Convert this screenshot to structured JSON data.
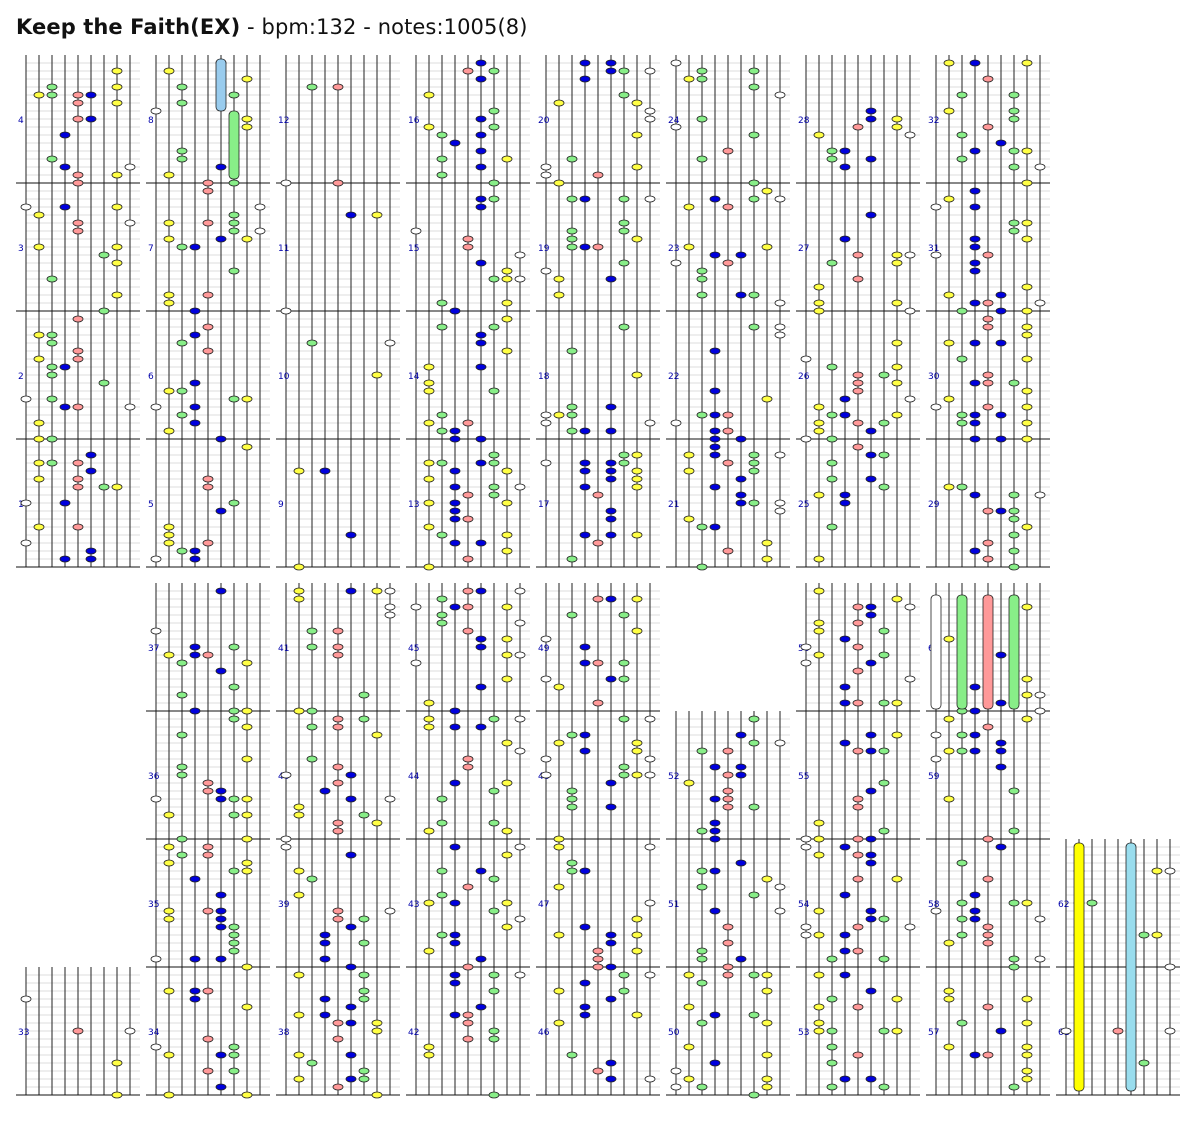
{
  "header": {
    "song_name": "Keep the Faith(EX)",
    "bpm_text": " - bpm:132 - notes:1005(8)"
  },
  "chart_data": {
    "type": "rhythm-game-chart",
    "song": "Keep the Faith",
    "difficulty": "EX",
    "bpm": 132,
    "notes": 1005,
    "notes_extra": 8,
    "lanes": 9,
    "lane_colors": [
      "#ffffff",
      "#ffff44",
      "#88ee88",
      "#0000dd",
      "#ff9999",
      "#0000dd",
      "#88ee88",
      "#ffff44",
      "#ffffff"
    ],
    "measure_labels": [
      "1",
      "2",
      "3",
      "4",
      "5",
      "6",
      "7",
      "8",
      "9",
      "10",
      "11",
      "12",
      "13",
      "14",
      "15",
      "16",
      "17",
      "18",
      "19",
      "20",
      "21",
      "22",
      "23",
      "24",
      "25",
      "26",
      "27",
      "28",
      "29",
      "30",
      "31",
      "32",
      "33",
      "34",
      "35",
      "36",
      "37",
      "38",
      "39",
      "40",
      "41",
      "42",
      "43",
      "44",
      "45",
      "46",
      "47",
      "48",
      "49",
      "50",
      "51",
      "52",
      "53",
      "54",
      "55",
      "56",
      "57",
      "58",
      "59",
      "60",
      "61",
      "62"
    ],
    "columns_row1": [
      {
        "measures": [
          1,
          2,
          3,
          4
        ]
      },
      {
        "measures": [
          5,
          6,
          7,
          8
        ]
      },
      {
        "measures": [
          9,
          10,
          11,
          12
        ]
      },
      {
        "measures": [
          13,
          14,
          15,
          16
        ]
      },
      {
        "measures": [
          17,
          18,
          19,
          20
        ]
      },
      {
        "measures": [
          21,
          22,
          23,
          24
        ]
      },
      {
        "measures": [
          25,
          26,
          27,
          28
        ]
      },
      {
        "measures": [
          29,
          30,
          31,
          32
        ]
      }
    ],
    "columns_row2": [
      {
        "measures": [
          33
        ]
      },
      {
        "measures": [
          34,
          35,
          36,
          37
        ]
      },
      {
        "measures": [
          38,
          39,
          40,
          41
        ]
      },
      {
        "measures": [
          42,
          43,
          44,
          45
        ]
      },
      {
        "measures": [
          46,
          47,
          48,
          49
        ]
      },
      {
        "measures": [
          50,
          51,
          52
        ]
      },
      {
        "measures": [
          53,
          54,
          55,
          56
        ]
      },
      {
        "measures": [
          57,
          58,
          59,
          60
        ]
      },
      {
        "measures": [
          61,
          62
        ]
      }
    ],
    "long_notes": [
      {
        "measure": 8,
        "lane": 5,
        "color": "#99ccee"
      },
      {
        "measure": 8,
        "lane": 6,
        "color": "#88ee88"
      },
      {
        "measure": 60,
        "lane": 0,
        "color": "#ffffff"
      },
      {
        "measure": 60,
        "lane": 2,
        "color": "#88ee88"
      },
      {
        "measure": 60,
        "lane": 4,
        "color": "#ff9999"
      },
      {
        "measure": 60,
        "lane": 6,
        "color": "#88ee88"
      },
      {
        "measure": 62,
        "lane": 1,
        "color": "#ffff00"
      },
      {
        "measure": 62,
        "lane": 5,
        "color": "#99ddee"
      }
    ]
  }
}
